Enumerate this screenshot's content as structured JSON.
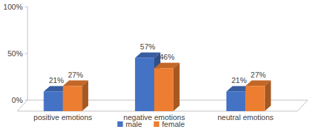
{
  "chart_data": {
    "type": "bar",
    "categories": [
      "positive emotions",
      "negative emotions",
      "neutral emotions"
    ],
    "series": [
      {
        "name": "male",
        "color": "#4472c4",
        "values": [
          21,
          57,
          21
        ],
        "value_labels": [
          "21%",
          "57%",
          "21%"
        ]
      },
      {
        "name": "female",
        "color": "#ed7d31",
        "values": [
          27,
          46,
          27
        ],
        "value_labels": [
          "27%",
          "46%",
          "27%"
        ]
      }
    ],
    "ylim": [
      0,
      100
    ],
    "yticks": [
      {
        "value": 0,
        "label": "0%"
      },
      {
        "value": 50,
        "label": "50%"
      },
      {
        "value": 100,
        "label": "100%"
      }
    ],
    "grid": false,
    "legend": "bottom",
    "data_labels": true
  }
}
